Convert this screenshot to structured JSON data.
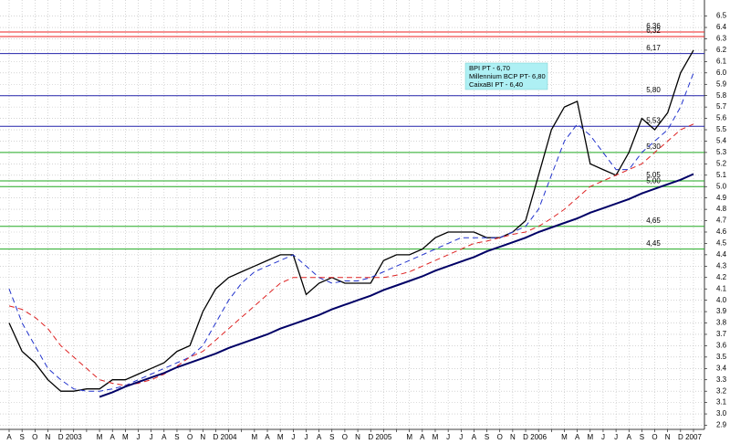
{
  "chart_data": {
    "type": "line",
    "categories": [
      "A",
      "S",
      "O",
      "N",
      "D",
      "2003",
      null,
      "M",
      "A",
      "M",
      "J",
      "J",
      "A",
      "S",
      "O",
      "N",
      "D",
      "2004",
      null,
      "M",
      "A",
      "M",
      "J",
      "J",
      "A",
      "S",
      "O",
      "N",
      "D",
      "2005",
      null,
      "M",
      "A",
      "M",
      "J",
      "J",
      "A",
      "S",
      "O",
      "N",
      "D",
      "2006",
      null,
      "M",
      "A",
      "M",
      "J",
      "J",
      "A",
      "S",
      "O",
      "N",
      "D",
      "2007"
    ],
    "series": [
      {
        "color": "#000000",
        "style": "solid",
        "width": 1.3,
        "values": [
          3.8,
          3.55,
          3.45,
          3.3,
          3.2,
          3.2,
          3.22,
          3.22,
          3.3,
          3.3,
          3.35,
          3.4,
          3.45,
          3.55,
          3.6,
          3.9,
          4.1,
          4.2,
          4.25,
          4.3,
          4.35,
          4.4,
          4.4,
          4.05,
          4.15,
          4.2,
          4.15,
          4.15,
          4.15,
          4.35,
          4.4,
          4.4,
          4.45,
          4.55,
          4.6,
          4.6,
          4.6,
          4.55,
          4.55,
          4.6,
          4.7,
          5.1,
          5.5,
          5.7,
          5.75,
          5.2,
          5.15,
          5.1,
          5.3,
          5.6,
          5.5,
          5.65,
          6.0,
          6.2
        ]
      },
      {
        "color": "#2233cc",
        "style": "dashed",
        "width": 1,
        "values": [
          4.1,
          3.8,
          3.6,
          3.4,
          3.3,
          3.22,
          3.2,
          3.2,
          3.22,
          3.25,
          3.3,
          3.35,
          3.4,
          3.45,
          3.5,
          3.6,
          3.8,
          4.0,
          4.15,
          4.25,
          4.3,
          4.35,
          4.4,
          4.3,
          4.2,
          4.15,
          4.17,
          4.17,
          4.2,
          4.25,
          4.3,
          4.35,
          4.4,
          4.45,
          4.5,
          4.55,
          4.55,
          4.55,
          4.55,
          4.6,
          4.65,
          4.8,
          5.1,
          5.4,
          5.55,
          5.45,
          5.3,
          5.15,
          5.15,
          5.3,
          5.4,
          5.5,
          5.7,
          6.0
        ]
      },
      {
        "color": "#dd2222",
        "style": "dashed",
        "width": 1,
        "values": [
          3.95,
          3.92,
          3.85,
          3.75,
          3.6,
          3.5,
          3.4,
          3.3,
          3.27,
          3.25,
          3.27,
          3.3,
          3.35,
          3.42,
          3.5,
          3.55,
          3.65,
          3.75,
          3.85,
          3.95,
          4.05,
          4.15,
          4.2,
          4.2,
          4.2,
          4.2,
          4.2,
          4.2,
          4.2,
          4.2,
          4.22,
          4.25,
          4.3,
          4.35,
          4.4,
          4.45,
          4.5,
          4.52,
          4.55,
          4.58,
          4.6,
          4.65,
          4.72,
          4.8,
          4.9,
          5.0,
          5.05,
          5.1,
          5.15,
          5.2,
          5.3,
          5.4,
          5.5,
          5.55
        ]
      },
      {
        "color": "#000066",
        "style": "solid",
        "width": 2,
        "values": [
          null,
          null,
          null,
          null,
          null,
          null,
          null,
          3.15,
          3.19,
          3.24,
          3.28,
          3.32,
          3.36,
          3.41,
          3.45,
          3.49,
          3.53,
          3.58,
          3.62,
          3.66,
          3.7,
          3.75,
          3.79,
          3.83,
          3.87,
          3.92,
          3.96,
          4.0,
          4.04,
          4.09,
          4.13,
          4.17,
          4.21,
          4.26,
          4.3,
          4.34,
          4.38,
          4.43,
          4.47,
          4.51,
          4.55,
          4.6,
          4.64,
          4.68,
          4.72,
          4.77,
          4.81,
          4.85,
          4.89,
          4.94,
          4.98,
          5.02,
          5.06,
          5.11
        ]
      }
    ],
    "levels": [
      {
        "value": 6.36,
        "label": "6,36",
        "color": "#ee2222"
      },
      {
        "value": 6.32,
        "label": "6,32",
        "color": "#ee2222"
      },
      {
        "value": 6.17,
        "label": "6,17",
        "color": "#2222aa"
      },
      {
        "value": 5.8,
        "label": "5,80",
        "color": "#2222aa"
      },
      {
        "value": 5.53,
        "label": "5,53",
        "color": "#2222aa"
      },
      {
        "value": 5.3,
        "label": "5,30",
        "color": "#22aa22"
      },
      {
        "value": 5.05,
        "label": "5,05",
        "color": "#22aa22"
      },
      {
        "value": 5,
        "label": "5,00",
        "color": "#22aa22"
      },
      {
        "value": 4.65,
        "label": "4,65",
        "color": "#22aa22"
      },
      {
        "value": 4.45,
        "label": "4,45",
        "color": "#22aa22"
      }
    ],
    "annotations": [
      "BPI PT - 6,70",
      "Millennium BCP PT- 6,80",
      "CaixaBI PT - 6,40"
    ],
    "ylim": [
      2.9,
      6.5
    ],
    "yticks": [
      2.9,
      {
        "value": 3,
        "label": "3.0"
      },
      3.1,
      3.2,
      3.3,
      3.4,
      3.5,
      3.6,
      3.7,
      3.8,
      3.9,
      {
        "value": 4,
        "label": "4.0"
      },
      4.1,
      4.2,
      4.3,
      4.4,
      4.5,
      4.6,
      4.7,
      4.8,
      4.9,
      {
        "value": 5,
        "label": "5.0"
      },
      5.1,
      5.2,
      5.3,
      5.4,
      5.5,
      5.6,
      5.7,
      5.8,
      5.9,
      {
        "value": 6,
        "label": "6.0"
      },
      6.1,
      6.2,
      6.3,
      6.4,
      6.5
    ],
    "grid": true
  }
}
